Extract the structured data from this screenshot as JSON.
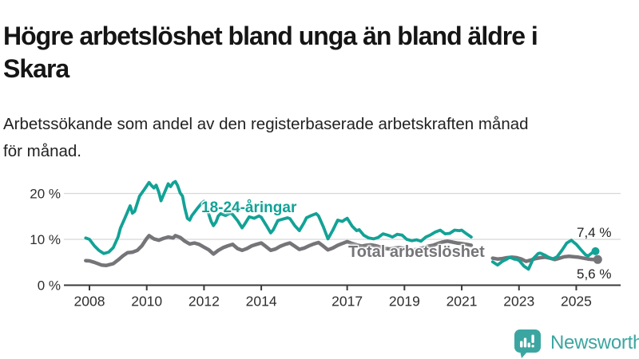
{
  "header": {
    "title": "Högre arbetslöshet bland unga än bland äldre i\nSkara",
    "subtitle": "Arbetssökande som andel av den registerbaserade arbetskraften månad\nför månad."
  },
  "annotations": {
    "youth_end_value": "7,4 %",
    "total_end_value": "5,6 %"
  },
  "footer": {
    "brand": "Newsworthy",
    "logo_icon": "bar-chart-speech-bubble"
  },
  "colors": {
    "youth_line": "#12a296",
    "total_line": "#757478",
    "grid": "#d8d8d8",
    "axis": "#3a3a3a",
    "tick_text": "#2f2f2f",
    "brand_teal": "#3ba6a1"
  },
  "chart_data": {
    "type": "line",
    "title": "Högre arbetslöshet bland unga än bland äldre i Skara",
    "xlabel": "",
    "ylabel": "",
    "unit": "%",
    "grid": "horizontal-only",
    "legend_position": "inline-labels",
    "xlim": [
      2007.5,
      2026.4
    ],
    "ylim": [
      0,
      24
    ],
    "y_ticks": [
      {
        "v": 0,
        "label": "0 %"
      },
      {
        "v": 10,
        "label": "10 %"
      },
      {
        "v": 20,
        "label": "20 %"
      }
    ],
    "x_ticks": [
      {
        "year": 2008,
        "label": "2008"
      },
      {
        "year": 2010,
        "label": "2010"
      },
      {
        "year": 2012,
        "label": "2012"
      },
      {
        "year": 2014,
        "label": "2014"
      },
      {
        "year": 2017,
        "label": "2017"
      },
      {
        "year": 2019,
        "label": "2019"
      },
      {
        "year": 2021,
        "label": "2021"
      },
      {
        "year": 2023,
        "label": "2023"
      },
      {
        "year": 2025,
        "label": "2025"
      }
    ],
    "note": "data gap between mid-2021 and early 2022",
    "series": [
      {
        "name": "Total arbetslöshet",
        "color": "#757478",
        "stroke_width": 4.5,
        "dot_radius": 5.5,
        "end_value_label": "5,6 %",
        "segments": [
          [
            [
              2007.87,
              5.35
            ],
            [
              2008.0,
              5.3
            ],
            [
              2008.17,
              5.0
            ],
            [
              2008.42,
              4.4
            ],
            [
              2008.58,
              4.3
            ],
            [
              2008.83,
              4.7
            ],
            [
              2009.0,
              5.5
            ],
            [
              2009.17,
              6.4
            ],
            [
              2009.33,
              7.1
            ],
            [
              2009.5,
              7.2
            ],
            [
              2009.67,
              7.6
            ],
            [
              2009.83,
              8.6
            ],
            [
              2010.0,
              10.2
            ],
            [
              2010.08,
              10.8
            ],
            [
              2010.25,
              10.1
            ],
            [
              2010.42,
              9.8
            ],
            [
              2010.58,
              10.2
            ],
            [
              2010.75,
              10.5
            ],
            [
              2010.92,
              10.3
            ],
            [
              2011.0,
              10.8
            ],
            [
              2011.17,
              10.4
            ],
            [
              2011.33,
              9.6
            ],
            [
              2011.5,
              9.0
            ],
            [
              2011.67,
              9.2
            ],
            [
              2011.83,
              8.9
            ],
            [
              2012.0,
              8.3
            ],
            [
              2012.17,
              7.7
            ],
            [
              2012.33,
              6.8
            ],
            [
              2012.5,
              7.6
            ],
            [
              2012.67,
              8.2
            ],
            [
              2012.83,
              8.6
            ],
            [
              2013.0,
              8.9
            ],
            [
              2013.17,
              8.0
            ],
            [
              2013.33,
              7.6
            ],
            [
              2013.5,
              8.0
            ],
            [
              2013.67,
              8.6
            ],
            [
              2013.83,
              8.9
            ],
            [
              2014.0,
              9.2
            ],
            [
              2014.17,
              8.4
            ],
            [
              2014.33,
              7.6
            ],
            [
              2014.5,
              7.9
            ],
            [
              2014.67,
              8.5
            ],
            [
              2014.83,
              8.9
            ],
            [
              2015.0,
              9.2
            ],
            [
              2015.17,
              8.5
            ],
            [
              2015.33,
              7.8
            ],
            [
              2015.5,
              8.1
            ],
            [
              2015.67,
              8.6
            ],
            [
              2015.83,
              9.0
            ],
            [
              2016.0,
              9.3
            ],
            [
              2016.17,
              8.5
            ],
            [
              2016.33,
              7.7
            ],
            [
              2016.5,
              8.1
            ],
            [
              2016.67,
              8.7
            ],
            [
              2016.83,
              9.1
            ],
            [
              2017.0,
              9.5
            ],
            [
              2017.17,
              9.1
            ],
            [
              2017.33,
              8.8
            ],
            [
              2017.5,
              8.5
            ],
            [
              2017.67,
              8.7
            ],
            [
              2017.83,
              8.8
            ],
            [
              2018.0,
              8.6
            ],
            [
              2018.17,
              8.3
            ],
            [
              2018.33,
              8.0
            ],
            [
              2018.5,
              7.9
            ],
            [
              2018.67,
              8.1
            ],
            [
              2018.83,
              8.2
            ],
            [
              2019.0,
              8.0
            ],
            [
              2019.17,
              7.8
            ],
            [
              2019.33,
              7.7
            ],
            [
              2019.5,
              7.9
            ],
            [
              2019.67,
              8.2
            ],
            [
              2019.83,
              8.5
            ],
            [
              2020.0,
              8.7
            ],
            [
              2020.17,
              9.1
            ],
            [
              2020.33,
              9.4
            ],
            [
              2020.5,
              9.6
            ],
            [
              2020.67,
              9.4
            ],
            [
              2020.83,
              9.2
            ],
            [
              2021.0,
              9.1
            ],
            [
              2021.17,
              8.9
            ],
            [
              2021.33,
              8.7
            ]
          ],
          [
            [
              2022.08,
              5.9
            ],
            [
              2022.25,
              5.7
            ],
            [
              2022.42,
              5.8
            ],
            [
              2022.58,
              6.0
            ],
            [
              2022.75,
              6.1
            ],
            [
              2022.92,
              6.0
            ],
            [
              2023.08,
              5.7
            ],
            [
              2023.25,
              5.2
            ],
            [
              2023.42,
              5.5
            ],
            [
              2023.58,
              5.8
            ],
            [
              2023.75,
              6.0
            ],
            [
              2023.92,
              6.1
            ],
            [
              2024.08,
              5.9
            ],
            [
              2024.25,
              5.6
            ],
            [
              2024.42,
              5.9
            ],
            [
              2024.58,
              6.2
            ],
            [
              2024.75,
              6.3
            ],
            [
              2024.92,
              6.2
            ],
            [
              2025.08,
              6.1
            ],
            [
              2025.25,
              5.9
            ],
            [
              2025.42,
              5.7
            ],
            [
              2025.58,
              5.6
            ],
            [
              2025.75,
              5.6
            ]
          ]
        ]
      },
      {
        "name": "18-24-åringar",
        "color": "#12a296",
        "stroke_width": 3.8,
        "dot_radius": 5,
        "end_value_label": "7,4 %",
        "segments": [
          [
            [
              2007.87,
              10.3
            ],
            [
              2008.0,
              10.0
            ],
            [
              2008.17,
              8.6
            ],
            [
              2008.33,
              7.6
            ],
            [
              2008.5,
              6.9
            ],
            [
              2008.67,
              7.2
            ],
            [
              2008.83,
              8.2
            ],
            [
              2009.0,
              10.5
            ],
            [
              2009.08,
              12.4
            ],
            [
              2009.25,
              14.8
            ],
            [
              2009.42,
              17.3
            ],
            [
              2009.5,
              15.7
            ],
            [
              2009.58,
              16.1
            ],
            [
              2009.75,
              19.4
            ],
            [
              2009.92,
              20.9
            ],
            [
              2010.08,
              22.4
            ],
            [
              2010.17,
              21.7
            ],
            [
              2010.25,
              21.2
            ],
            [
              2010.33,
              21.8
            ],
            [
              2010.42,
              20.3
            ],
            [
              2010.5,
              18.4
            ],
            [
              2010.58,
              19.6
            ],
            [
              2010.75,
              22.1
            ],
            [
              2010.83,
              21.5
            ],
            [
              2010.92,
              22.3
            ],
            [
              2011.0,
              22.6
            ],
            [
              2011.08,
              21.7
            ],
            [
              2011.17,
              20.1
            ],
            [
              2011.25,
              19.4
            ],
            [
              2011.33,
              16.8
            ],
            [
              2011.42,
              14.6
            ],
            [
              2011.5,
              14.2
            ],
            [
              2011.58,
              15.2
            ],
            [
              2011.75,
              16.6
            ],
            [
              2011.92,
              17.9
            ],
            [
              2012.0,
              18.3
            ],
            [
              2012.08,
              17.1
            ],
            [
              2012.25,
              13.9
            ],
            [
              2012.33,
              13.0
            ],
            [
              2012.42,
              13.8
            ],
            [
              2012.5,
              15.1
            ],
            [
              2012.58,
              15.6
            ],
            [
              2012.75,
              15.2
            ],
            [
              2012.92,
              15.7
            ],
            [
              2013.0,
              15.4
            ],
            [
              2013.17,
              14.1
            ],
            [
              2013.33,
              12.5
            ],
            [
              2013.42,
              13.3
            ],
            [
              2013.58,
              14.9
            ],
            [
              2013.75,
              14.6
            ],
            [
              2013.92,
              15.1
            ],
            [
              2014.0,
              14.8
            ],
            [
              2014.17,
              13.1
            ],
            [
              2014.33,
              11.4
            ],
            [
              2014.42,
              12.1
            ],
            [
              2014.58,
              14.1
            ],
            [
              2014.75,
              14.4
            ],
            [
              2014.92,
              14.7
            ],
            [
              2015.0,
              14.5
            ],
            [
              2015.17,
              13.0
            ],
            [
              2015.33,
              11.9
            ],
            [
              2015.5,
              13.7
            ],
            [
              2015.58,
              14.7
            ],
            [
              2015.75,
              15.2
            ],
            [
              2015.92,
              15.6
            ],
            [
              2016.0,
              15.1
            ],
            [
              2016.17,
              12.7
            ],
            [
              2016.33,
              10.1
            ],
            [
              2016.5,
              12.0
            ],
            [
              2016.67,
              14.2
            ],
            [
              2016.83,
              13.9
            ],
            [
              2016.92,
              14.3
            ],
            [
              2017.0,
              14.6
            ],
            [
              2017.17,
              12.9
            ],
            [
              2017.33,
              11.9
            ],
            [
              2017.42,
              12.1
            ],
            [
              2017.58,
              10.9
            ],
            [
              2017.75,
              10.3
            ],
            [
              2017.92,
              10.1
            ],
            [
              2018.08,
              10.4
            ],
            [
              2018.25,
              11.2
            ],
            [
              2018.42,
              10.9
            ],
            [
              2018.58,
              10.5
            ],
            [
              2018.75,
              11.1
            ],
            [
              2018.92,
              10.9
            ],
            [
              2019.08,
              10.0
            ],
            [
              2019.25,
              9.7
            ],
            [
              2019.42,
              9.9
            ],
            [
              2019.58,
              9.6
            ],
            [
              2019.75,
              10.5
            ],
            [
              2019.92,
              11.0
            ],
            [
              2020.08,
              11.6
            ],
            [
              2020.25,
              12.0
            ],
            [
              2020.42,
              11.2
            ],
            [
              2020.58,
              11.3
            ],
            [
              2020.75,
              12.0
            ],
            [
              2020.92,
              11.9
            ],
            [
              2021.0,
              12.0
            ],
            [
              2021.17,
              11.2
            ],
            [
              2021.33,
              10.5
            ]
          ],
          [
            [
              2022.08,
              5.1
            ],
            [
              2022.25,
              4.4
            ],
            [
              2022.42,
              5.2
            ],
            [
              2022.58,
              5.7
            ],
            [
              2022.67,
              6.1
            ],
            [
              2022.83,
              5.7
            ],
            [
              2022.92,
              5.6
            ],
            [
              2023.0,
              5.4
            ],
            [
              2023.17,
              4.2
            ],
            [
              2023.33,
              3.5
            ],
            [
              2023.5,
              5.8
            ],
            [
              2023.67,
              6.9
            ],
            [
              2023.75,
              7.0
            ],
            [
              2023.92,
              6.5
            ],
            [
              2024.0,
              6.2
            ],
            [
              2024.17,
              5.7
            ],
            [
              2024.33,
              6.2
            ],
            [
              2024.5,
              7.6
            ],
            [
              2024.67,
              9.2
            ],
            [
              2024.83,
              9.8
            ],
            [
              2024.92,
              9.3
            ],
            [
              2025.0,
              8.9
            ],
            [
              2025.17,
              7.7
            ],
            [
              2025.33,
              6.6
            ],
            [
              2025.42,
              6.4
            ],
            [
              2025.58,
              7.2
            ],
            [
              2025.67,
              7.4
            ]
          ]
        ]
      }
    ]
  }
}
